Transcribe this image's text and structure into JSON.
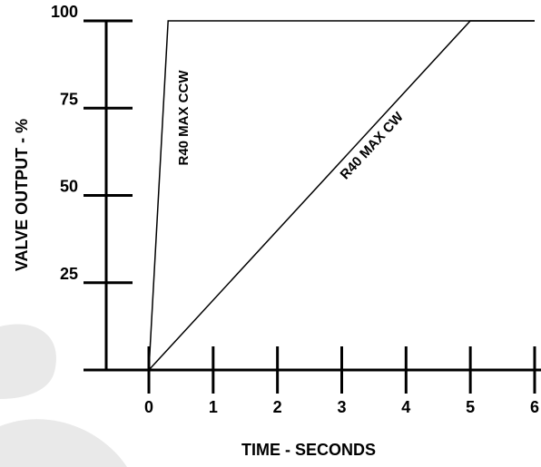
{
  "chart_data": {
    "type": "line",
    "xlabel": "TIME - SECONDS",
    "ylabel": "VALVE OUTPUT - %",
    "xlim": [
      0,
      6
    ],
    "ylim": [
      0,
      100
    ],
    "x_ticks": [
      "0",
      "1",
      "2",
      "3",
      "4",
      "5",
      "6"
    ],
    "y_ticks": [
      "25",
      "50",
      "75",
      "100"
    ],
    "grid": false,
    "series": [
      {
        "name": "R40 MAX CCW",
        "x": [
          0,
          0.3,
          6
        ],
        "y": [
          0,
          100,
          100
        ]
      },
      {
        "name": "R40 MAX CW",
        "x": [
          0,
          5,
          6
        ],
        "y": [
          0,
          100,
          100
        ]
      }
    ]
  }
}
